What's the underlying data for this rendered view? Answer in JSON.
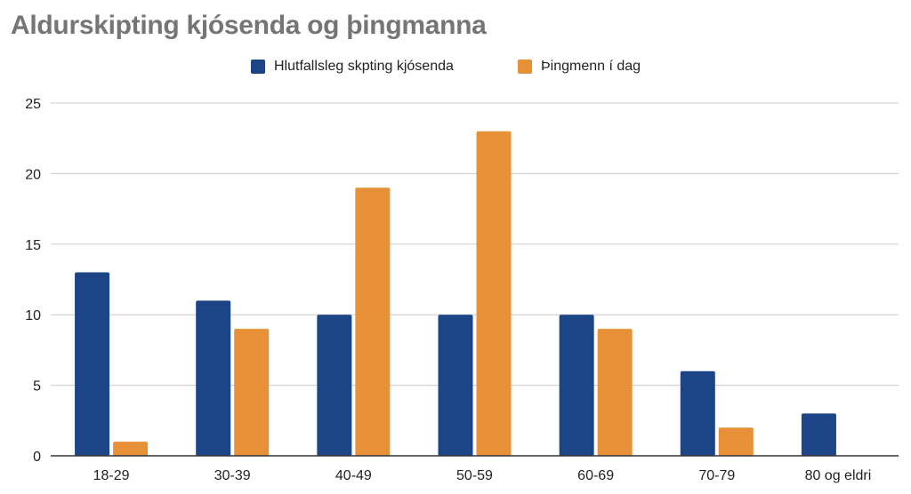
{
  "chart_data": {
    "type": "bar",
    "title": "Aldurskipting kjósenda og þingmanna",
    "categories": [
      "18-29",
      "30-39",
      "40-49",
      "50-59",
      "60-69",
      "70-79",
      "80 og eldri"
    ],
    "series": [
      {
        "name": "Hlutfallsleg skpting kjósenda",
        "color": "#1c4587",
        "values": [
          13,
          11,
          10,
          10,
          10,
          6,
          3
        ]
      },
      {
        "name": "Þingmenn í dag",
        "color": "#e69138",
        "values": [
          1,
          9,
          19,
          23,
          9,
          2,
          0
        ]
      }
    ],
    "ylim": [
      0,
      25
    ],
    "yticks": [
      "0",
      "5",
      "10",
      "15",
      "20",
      "25"
    ],
    "grid": true,
    "legend_position": "top"
  }
}
